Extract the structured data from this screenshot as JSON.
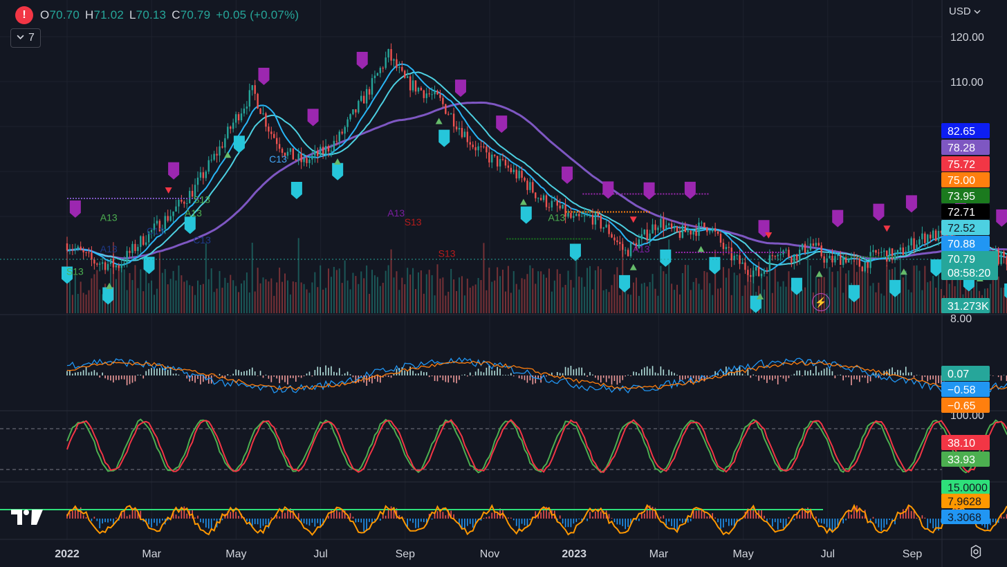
{
  "header": {
    "alert_symbol": "!",
    "ohlc": [
      {
        "k": "O",
        "v": "70.70"
      },
      {
        "k": "H",
        "v": "71.02"
      },
      {
        "k": "L",
        "v": "70.13"
      },
      {
        "k": "C",
        "v": "70.79"
      },
      {
        "k": "",
        "v": "+0.05 (+0.07%)"
      }
    ],
    "indicator_count": "7",
    "currency": "USD"
  },
  "chart_data": [
    {
      "type": "candlestick",
      "price_axis_ticks": [
        "120.00",
        "110.00"
      ],
      "x_ticks": [
        "2022",
        "Mar",
        "May",
        "Jul",
        "Sep",
        "Nov",
        "2023",
        "Mar",
        "May",
        "Jul",
        "Sep"
      ],
      "close_path": [
        [
          0,
          74
        ],
        [
          0.3,
          70
        ],
        [
          0.6,
          69
        ],
        [
          0.9,
          75
        ],
        [
          1.2,
          80
        ],
        [
          1.5,
          86
        ],
        [
          1.8,
          95
        ],
        [
          2.0,
          102
        ],
        [
          2.2,
          108
        ],
        [
          2.4,
          99
        ],
        [
          2.6,
          94
        ],
        [
          2.8,
          92
        ],
        [
          3.0,
          94
        ],
        [
          3.2,
          97
        ],
        [
          3.4,
          103
        ],
        [
          3.6,
          109
        ],
        [
          3.8,
          116
        ],
        [
          4.0,
          110
        ],
        [
          4.2,
          108
        ],
        [
          4.4,
          106
        ],
        [
          4.6,
          101
        ],
        [
          4.8,
          96
        ],
        [
          5.0,
          93
        ],
        [
          5.2,
          91
        ],
        [
          5.4,
          88
        ],
        [
          5.6,
          84
        ],
        [
          5.8,
          82
        ],
        [
          6.0,
          79
        ],
        [
          6.2,
          80
        ],
        [
          6.4,
          77
        ],
        [
          6.6,
          72
        ],
        [
          6.8,
          75
        ],
        [
          7.0,
          79
        ],
        [
          7.2,
          76
        ],
        [
          7.4,
          77
        ],
        [
          7.6,
          78
        ],
        [
          7.8,
          72
        ],
        [
          8.0,
          69
        ],
        [
          8.2,
          67
        ],
        [
          8.4,
          73
        ],
        [
          8.6,
          71
        ],
        [
          8.8,
          74
        ],
        [
          9.0,
          70
        ],
        [
          9.2,
          71
        ],
        [
          9.4,
          69
        ],
        [
          9.6,
          72
        ],
        [
          9.8,
          71
        ],
        [
          10.0,
          74
        ],
        [
          10.2,
          76
        ],
        [
          10.4,
          75
        ],
        [
          10.6,
          73
        ],
        [
          10.8,
          71
        ],
        [
          11.0,
          71
        ],
        [
          11.2,
          70
        ],
        [
          11.4,
          71
        ],
        [
          11.6,
          70.79
        ]
      ],
      "last_price": "70.79",
      "countdown": "08:58:20",
      "price_tags": [
        {
          "label": "82.65",
          "color": "#0d1ef2"
        },
        {
          "label": "78.28",
          "color": "#7e57c2"
        },
        {
          "label": "75.72",
          "color": "#f23645"
        },
        {
          "label": "75.00",
          "color": "#ff7f0e"
        },
        {
          "label": "73.95",
          "color": "#1b7a1e"
        },
        {
          "label": "72.71",
          "color": "#000000"
        },
        {
          "label": "72.52",
          "color": "#4dd0e1"
        },
        {
          "label": "70.88",
          "color": "#2196f3"
        },
        {
          "label": "70.79",
          "color": "#26a69a"
        },
        {
          "label": "31.273K",
          "color": "#26a69a"
        }
      ],
      "moving_averages": [
        {
          "color": "#7e57c2"
        },
        {
          "color": "#4dd0e1"
        },
        {
          "color": "#29b6f6"
        }
      ],
      "annotations": [
        "S13",
        "A13",
        "C13",
        "A13",
        "C13",
        "S13",
        "A13",
        "A13",
        "C13",
        "A13",
        "A13",
        "S13",
        "S13"
      ]
    },
    {
      "type": "line",
      "indicator": "MACD",
      "axis_top": "8.00",
      "tags": [
        {
          "label": "0.07",
          "color": "#26a69a"
        },
        {
          "label": "−0.58",
          "color": "#2196f3"
        },
        {
          "label": "−0.65",
          "color": "#ff7f0e"
        }
      ]
    },
    {
      "type": "line",
      "indicator": "Stochastic",
      "axis_top": "100.00",
      "series": [
        {
          "color": "#4caf50",
          "last": 33.93
        },
        {
          "color": "#f23645",
          "last": 38.1
        }
      ],
      "tags": [
        {
          "label": "38.10",
          "color": "#f23645"
        },
        {
          "label": "33.93",
          "color": "#4caf50"
        }
      ]
    },
    {
      "type": "line",
      "indicator": "oscillator",
      "tags": [
        {
          "label": "15.0000",
          "color": "#2ee07a"
        },
        {
          "label": "7.9628",
          "color": "#ff9800"
        },
        {
          "label": "3.3068",
          "color": "#2196f3"
        }
      ]
    }
  ],
  "icons": {
    "settings": "settings-icon",
    "bolt": "lightning-icon",
    "logo": "tradingview-logo"
  }
}
